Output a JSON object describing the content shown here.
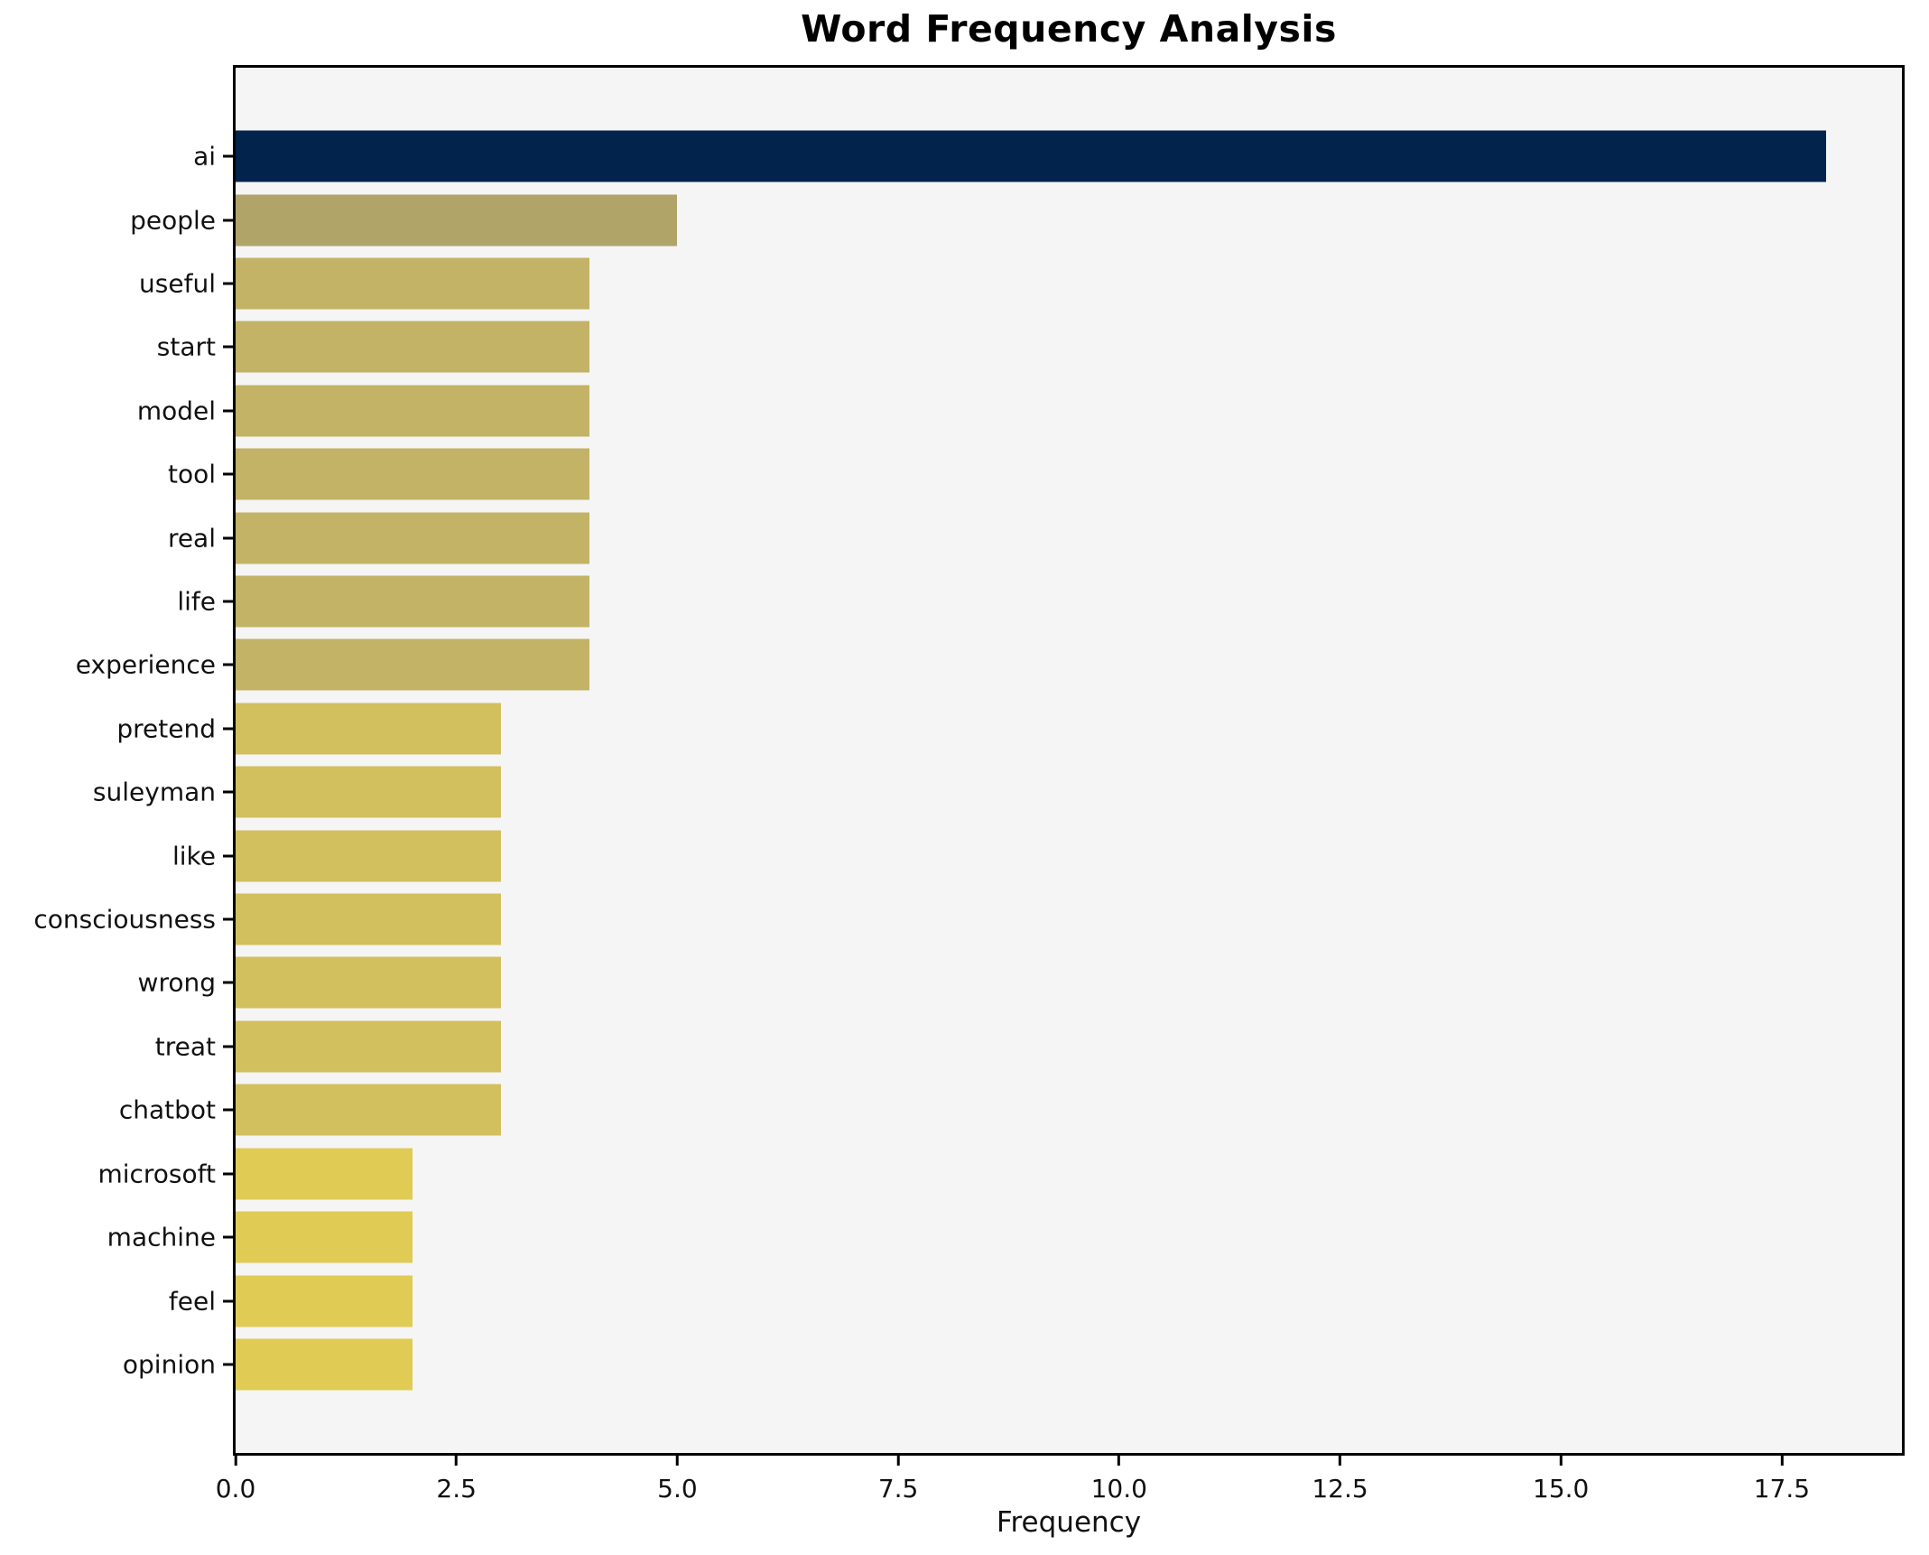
{
  "chart_data": {
    "type": "bar",
    "orientation": "horizontal",
    "title": "Word Frequency Analysis",
    "xlabel": "Frequency",
    "ylabel": "",
    "xlim": [
      0,
      18.86
    ],
    "grid": false,
    "legend": "none",
    "plot_background": "#f5f5f6",
    "figure_background": "#ffffff",
    "spine_color": "#000000",
    "xticks": [
      "0.0",
      "2.5",
      "5.0",
      "7.5",
      "10.0",
      "12.5",
      "15.0",
      "17.5"
    ],
    "categories": [
      "ai",
      "people",
      "useful",
      "start",
      "model",
      "tool",
      "real",
      "life",
      "experience",
      "pretend",
      "suleyman",
      "like",
      "consciousness",
      "wrong",
      "treat",
      "chatbot",
      "microsoft",
      "machine",
      "feel",
      "opinion"
    ],
    "values": [
      18,
      5,
      4,
      4,
      4,
      4,
      4,
      4,
      4,
      3,
      3,
      3,
      3,
      3,
      3,
      3,
      2,
      2,
      2,
      2
    ],
    "bar_colors": [
      "#02234c",
      "#b0a469",
      "#c2b366",
      "#c2b366",
      "#c2b366",
      "#c2b366",
      "#c2b366",
      "#c2b366",
      "#c2b366",
      "#d2bf5e",
      "#d2bf5e",
      "#d2bf5e",
      "#d2bf5e",
      "#d2bf5e",
      "#d2bf5e",
      "#d2bf5e",
      "#e0cb55",
      "#e0cb55",
      "#e0cb55",
      "#e0cb55"
    ]
  }
}
